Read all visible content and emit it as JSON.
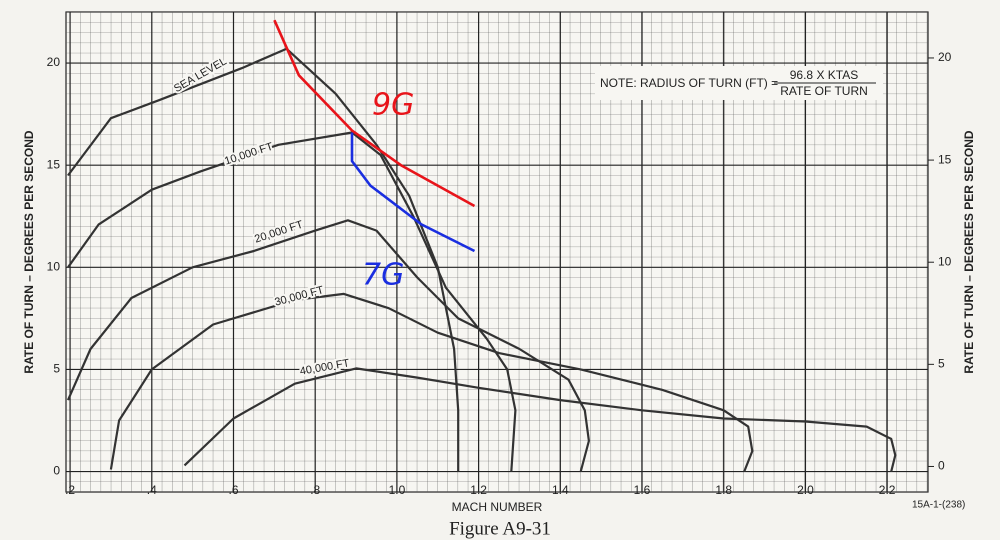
{
  "chart_data": {
    "type": "line",
    "note": {
      "prefix": "NOTE:  RADIUS OF TURN (FT) =",
      "numerator": "96.8 X KTAS",
      "denominator": "RATE OF TURN"
    },
    "x_label": "MACH NUMBER",
    "y_label": "RATE OF TURN – DEGREES PER SECOND",
    "y2_label": "RATE OF TURN – DEGREES PER SECOND",
    "code": "15A-1-(238)",
    "caption": "Figure A9-31",
    "xlim": [
      0.19,
      2.3
    ],
    "ylim": [
      -1,
      22.5
    ],
    "y2lim": [
      -1.25,
      22.25
    ],
    "xticks": [
      {
        "value": 0.2,
        "label": ".2"
      },
      {
        "value": 0.4,
        "label": ".4"
      },
      {
        "value": 0.6,
        "label": ".6"
      },
      {
        "value": 0.8,
        "label": ".8"
      },
      {
        "value": 1.0,
        "label": "1.0"
      },
      1.2,
      1.4,
      1.6,
      1.8,
      {
        "value": 2.0,
        "label": "2.0"
      },
      2.2
    ],
    "yticks": [
      0,
      5,
      10,
      15,
      20
    ],
    "y2ticks": [
      0,
      5,
      10,
      15,
      20
    ],
    "grid": true,
    "series": [
      {
        "name": "SEA LEVEL",
        "color": "#333333",
        "x": [
          0.195,
          0.3,
          0.42,
          0.62,
          0.73,
          0.85,
          0.95,
          1.03,
          1.1,
          1.14,
          1.15,
          1.15
        ],
        "values": [
          14.5,
          17.3,
          18.2,
          19.75,
          20.7,
          18.5,
          16.0,
          13.5,
          10.0,
          6.0,
          3.0,
          0
        ]
      },
      {
        "name": "10,000 FT",
        "color": "#333333",
        "x": [
          0.195,
          0.27,
          0.4,
          0.52,
          0.71,
          0.89,
          0.96,
          1.04,
          1.12,
          1.22,
          1.27,
          1.29,
          1.28
        ],
        "values": [
          10.0,
          12.1,
          13.8,
          14.7,
          16.0,
          16.6,
          15.5,
          12.5,
          9.0,
          6.5,
          5.0,
          3.0,
          0
        ]
      },
      {
        "name": "20,000 FT",
        "color": "#333333",
        "x": [
          0.195,
          0.25,
          0.35,
          0.5,
          0.65,
          0.8,
          0.88,
          0.95,
          1.05,
          1.15,
          1.3,
          1.42,
          1.46,
          1.47,
          1.45
        ],
        "values": [
          3.5,
          6.0,
          8.5,
          10.0,
          10.8,
          11.8,
          12.3,
          11.8,
          9.5,
          7.5,
          6.0,
          4.5,
          3.0,
          1.5,
          0
        ]
      },
      {
        "name": "30,000 FT",
        "color": "#333333",
        "x": [
          0.3,
          0.32,
          0.4,
          0.55,
          0.75,
          0.87,
          0.98,
          1.1,
          1.25,
          1.45,
          1.65,
          1.8,
          1.86,
          1.87,
          1.85
        ],
        "values": [
          0.1,
          2.5,
          5.0,
          7.2,
          8.4,
          8.7,
          8.0,
          6.8,
          5.8,
          5.0,
          4.0,
          3.0,
          2.2,
          1.0,
          0
        ]
      },
      {
        "name": "40,000 FT",
        "color": "#333333",
        "x": [
          0.48,
          0.6,
          0.75,
          0.9,
          1.05,
          1.2,
          1.4,
          1.6,
          1.8,
          2.0,
          2.15,
          2.21,
          2.22,
          2.21
        ],
        "values": [
          0.3,
          2.6,
          4.3,
          5.05,
          4.6,
          4.1,
          3.5,
          3.0,
          2.6,
          2.45,
          2.2,
          1.6,
          0.8,
          0
        ]
      },
      {
        "name": "9G",
        "color": "#e8141a",
        "x": [
          0.7,
          0.76,
          0.89,
          1.01,
          1.19
        ],
        "values": [
          22.1,
          19.4,
          16.7,
          15.0,
          13.0
        ]
      },
      {
        "name": "7G",
        "color": "#1a2ee0",
        "x": [
          0.89,
          0.89,
          0.935,
          1.06,
          1.19
        ],
        "values": [
          16.6,
          15.2,
          14.0,
          12.1,
          10.8
        ]
      }
    ]
  }
}
